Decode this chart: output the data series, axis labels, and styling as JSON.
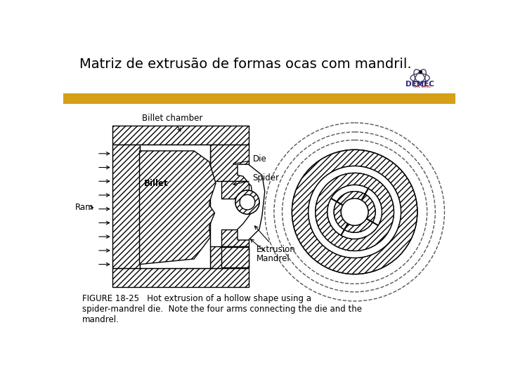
{
  "title": "Matriz de extrusão de formas ocas com mandril.",
  "title_fontsize": 14,
  "background_color": "#ffffff",
  "stripe_color": "#D4A017",
  "caption_text": "FIGURE 18-25   Hot extrusion of a hollow shape using a\nspider-mandrel die.  Note the four arms connecting the die and the\nmandrel.",
  "caption_fontsize": 8.5,
  "labels": {
    "billet_chamber": "Billet chamber",
    "billet": "Billet",
    "ram": "Ram",
    "die": "Die",
    "spider": "Spider",
    "extrusion": "Extrusion",
    "mandrel": "Mandrel"
  },
  "line_color": "#000000"
}
